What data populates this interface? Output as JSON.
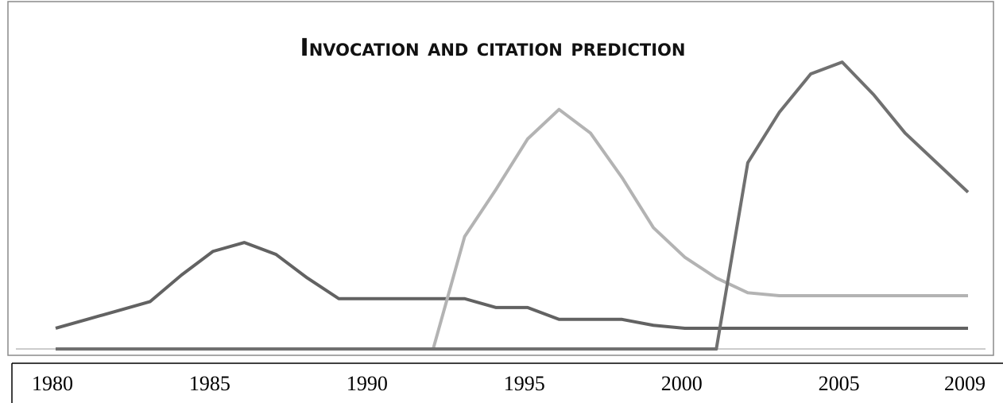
{
  "chart_data": {
    "type": "line",
    "title": "Invocation and citation prediction",
    "x": [
      1980,
      1981,
      1982,
      1983,
      1984,
      1985,
      1986,
      1987,
      1988,
      1989,
      1990,
      1991,
      1992,
      1993,
      1994,
      1995,
      1996,
      1997,
      1998,
      1999,
      2000,
      2001,
      2002,
      2003,
      2004,
      2005,
      2006,
      2007,
      2008,
      2009
    ],
    "series": [
      {
        "color": "#626262",
        "values": [
          7,
          10,
          13,
          16,
          25,
          33,
          36,
          32,
          24,
          17,
          17,
          17,
          17,
          17,
          14,
          14,
          10,
          10,
          10,
          8,
          7,
          7,
          7,
          7,
          7,
          7,
          7,
          7,
          7,
          7
        ]
      },
      {
        "color": "#b3b3b3",
        "values": [
          0,
          0,
          0,
          0,
          0,
          0,
          0,
          0,
          0,
          0,
          0,
          0,
          0,
          38,
          54,
          71,
          81,
          73,
          58,
          41,
          31,
          24,
          19,
          18,
          18,
          18,
          18,
          18,
          18,
          18
        ]
      },
      {
        "color": "#707070",
        "values": [
          0,
          0,
          0,
          0,
          0,
          0,
          0,
          0,
          0,
          0,
          0,
          0,
          0,
          0,
          0,
          0,
          0,
          0,
          0,
          0,
          0,
          0,
          63,
          80,
          93,
          97,
          86,
          73,
          63,
          53
        ]
      }
    ],
    "xlim": [
      1980,
      2009
    ],
    "xticks": [
      1980,
      1985,
      1990,
      1995,
      2000,
      2005,
      2009
    ],
    "ylim": [
      0,
      100
    ]
  }
}
